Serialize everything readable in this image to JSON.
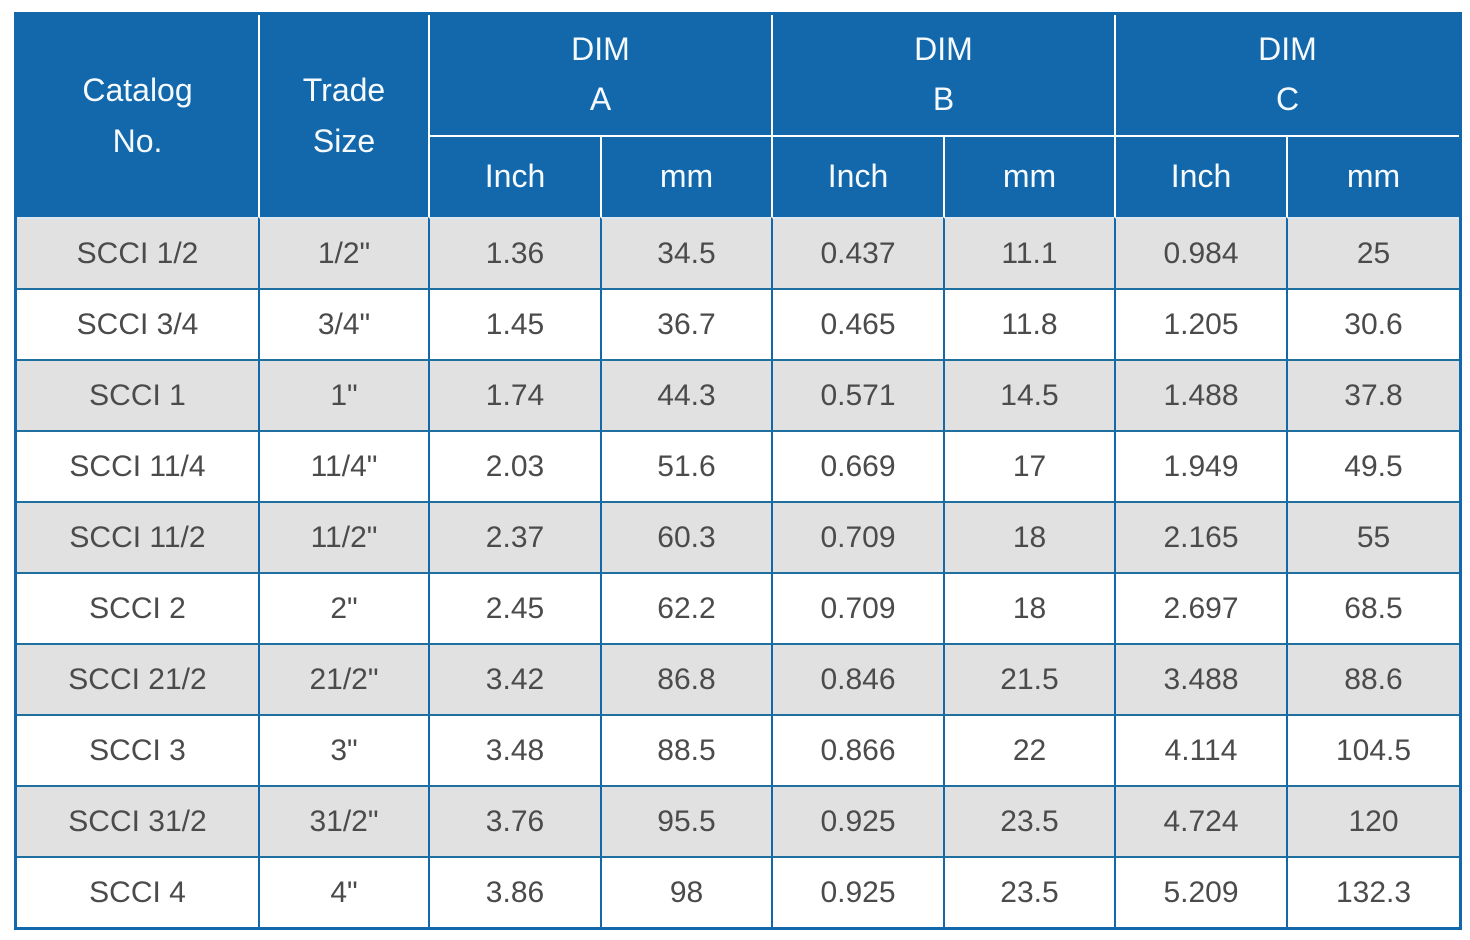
{
  "colors": {
    "header_blue": "#1268ab",
    "row_gray": "#e1e1e1",
    "row_white": "#ffffff",
    "column_divider_blue": "#1268ab",
    "row_separator_blue": "#1f6f9f",
    "header_text": "#ffffff",
    "cell_text": "#4b4b4b"
  },
  "table": {
    "header": {
      "catalog_label": "Catalog\nNo.",
      "trade_label": "Trade\nSize",
      "dim_groups": [
        "DIM\nA",
        "DIM\nB",
        "DIM\nC"
      ],
      "unit_labels": [
        "Inch",
        "mm",
        "Inch",
        "mm",
        "Inch",
        "mm"
      ]
    },
    "rows": [
      {
        "catalog": "SCCI 1/2",
        "trade_size": "1/2\"",
        "dim_a_inch": "1.36",
        "dim_a_mm": "34.5",
        "dim_b_inch": "0.437",
        "dim_b_mm": "11.1",
        "dim_c_inch": "0.984",
        "dim_c_mm": "25"
      },
      {
        "catalog": "SCCI 3/4",
        "trade_size": "3/4\"",
        "dim_a_inch": "1.45",
        "dim_a_mm": "36.7",
        "dim_b_inch": "0.465",
        "dim_b_mm": "11.8",
        "dim_c_inch": "1.205",
        "dim_c_mm": "30.6"
      },
      {
        "catalog": "SCCI 1",
        "trade_size": "1\"",
        "dim_a_inch": "1.74",
        "dim_a_mm": "44.3",
        "dim_b_inch": "0.571",
        "dim_b_mm": "14.5",
        "dim_c_inch": "1.488",
        "dim_c_mm": "37.8"
      },
      {
        "catalog": "SCCI 11/4",
        "trade_size": "11/4\"",
        "dim_a_inch": "2.03",
        "dim_a_mm": "51.6",
        "dim_b_inch": "0.669",
        "dim_b_mm": "17",
        "dim_c_inch": "1.949",
        "dim_c_mm": "49.5"
      },
      {
        "catalog": "SCCI 11/2",
        "trade_size": "11/2\"",
        "dim_a_inch": "2.37",
        "dim_a_mm": "60.3",
        "dim_b_inch": "0.709",
        "dim_b_mm": "18",
        "dim_c_inch": "2.165",
        "dim_c_mm": "55"
      },
      {
        "catalog": "SCCI 2",
        "trade_size": "2\"",
        "dim_a_inch": "2.45",
        "dim_a_mm": "62.2",
        "dim_b_inch": "0.709",
        "dim_b_mm": "18",
        "dim_c_inch": "2.697",
        "dim_c_mm": "68.5"
      },
      {
        "catalog": "SCCI 21/2",
        "trade_size": "21/2\"",
        "dim_a_inch": "3.42",
        "dim_a_mm": "86.8",
        "dim_b_inch": "0.846",
        "dim_b_mm": "21.5",
        "dim_c_inch": "3.488",
        "dim_c_mm": "88.6"
      },
      {
        "catalog": "SCCI 3",
        "trade_size": "3\"",
        "dim_a_inch": "3.48",
        "dim_a_mm": "88.5",
        "dim_b_inch": "0.866",
        "dim_b_mm": "22",
        "dim_c_inch": "4.114",
        "dim_c_mm": "104.5"
      },
      {
        "catalog": "SCCI 31/2",
        "trade_size": "31/2\"",
        "dim_a_inch": "3.76",
        "dim_a_mm": "95.5",
        "dim_b_inch": "0.925",
        "dim_b_mm": "23.5",
        "dim_c_inch": "4.724",
        "dim_c_mm": "120"
      },
      {
        "catalog": "SCCI 4",
        "trade_size": "4\"",
        "dim_a_inch": "3.86",
        "dim_a_mm": "98",
        "dim_b_inch": "0.925",
        "dim_b_mm": "23.5",
        "dim_c_inch": "5.209",
        "dim_c_mm": "132.3"
      }
    ]
  }
}
